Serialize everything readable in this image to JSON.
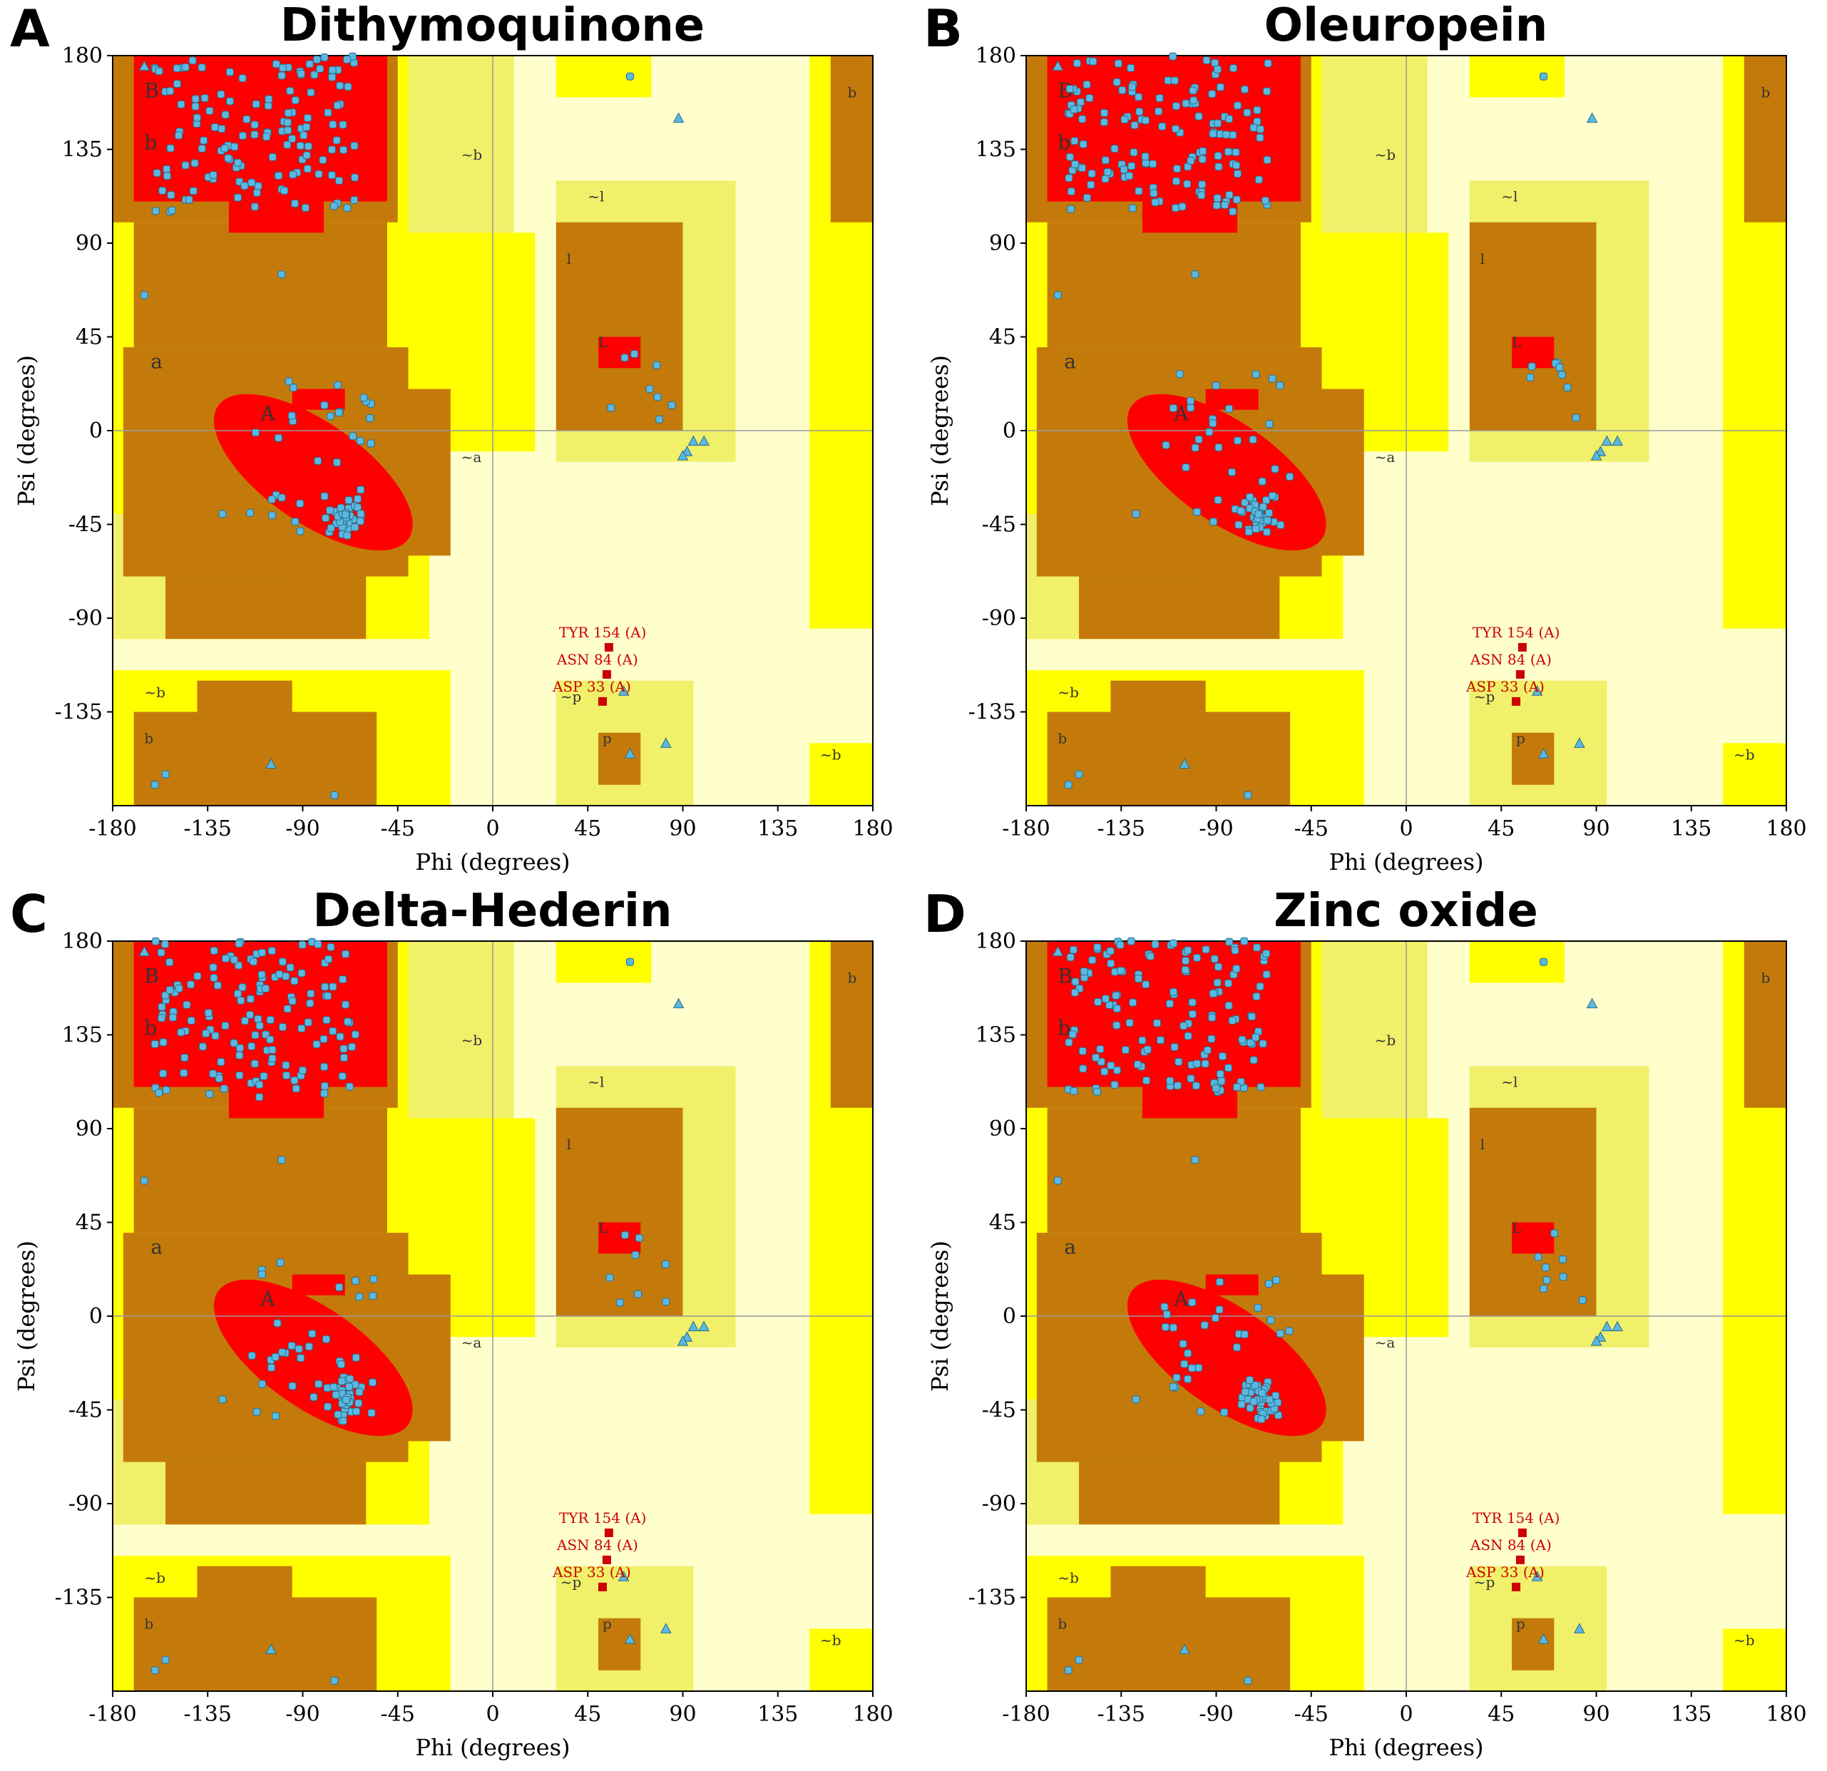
{
  "figure": {
    "colors": {
      "core": "#ff0000",
      "allowed": "#c47a0a",
      "generous": "#ffff00",
      "generous_light": "#f0f06a",
      "outside": "#ffffcc",
      "point": "#5bb8e0",
      "flagged": "#cc0000"
    }
  },
  "labels": {
    "region_labels": [
      "B",
      "b",
      "a",
      "A",
      "~b",
      "~l",
      "l",
      "L",
      "~a",
      "~p",
      "p",
      "b",
      "~b",
      "~b",
      "b"
    ],
    "outliers": [
      "TYR 154 (A)",
      "ASN 84 (A)",
      "ASP 33 (A)"
    ]
  },
  "panels": [
    {
      "letter": "A",
      "title": "Dithymoquinone"
    },
    {
      "letter": "B",
      "title": "Oleuropein"
    },
    {
      "letter": "C",
      "title": "Delta-Hederin"
    },
    {
      "letter": "D",
      "title": "Zinc oxide"
    }
  ],
  "chart_data": [
    {
      "type": "scatter",
      "title": "Dithymoquinone",
      "xlabel": "Phi (degrees)",
      "ylabel": "Psi (degrees)",
      "xlim": [
        -180,
        180
      ],
      "ylim": [
        -180,
        180
      ],
      "xticks": [
        "-180",
        "-135",
        "-90",
        "-45",
        "0",
        "45",
        "90",
        "135",
        "180"
      ],
      "yticks": [
        "180",
        "135",
        "90",
        "45",
        "0",
        "-45",
        "-90",
        "-135"
      ],
      "outliers": [
        {
          "name": "TYR 154 (A)",
          "phi": 55,
          "psi": -104
        },
        {
          "name": "ASN 84 (A)",
          "phi": 54,
          "psi": -117
        },
        {
          "name": "ASP 33 (A)",
          "phi": 52,
          "psi": -130
        }
      ]
    },
    {
      "type": "scatter",
      "title": "Oleuropein",
      "xlabel": "Phi (degrees)",
      "ylabel": "Psi (degrees)",
      "xlim": [
        -180,
        180
      ],
      "ylim": [
        -180,
        180
      ],
      "xticks": [
        "-180",
        "-135",
        "-90",
        "-45",
        "0",
        "45",
        "90",
        "135",
        "180"
      ],
      "yticks": [
        "180",
        "135",
        "90",
        "45",
        "0",
        "-45",
        "-90",
        "-135"
      ],
      "outliers": [
        {
          "name": "TYR 154 (A)",
          "phi": 55,
          "psi": -104
        },
        {
          "name": "ASN 84 (A)",
          "phi": 54,
          "psi": -117
        },
        {
          "name": "ASP 33 (A)",
          "phi": 52,
          "psi": -130
        }
      ]
    },
    {
      "type": "scatter",
      "title": "Delta-Hederin",
      "xlabel": "Phi (degrees)",
      "ylabel": "Psi (degrees)",
      "xlim": [
        -180,
        180
      ],
      "ylim": [
        -180,
        180
      ],
      "xticks": [
        "-180",
        "-135",
        "-90",
        "-45",
        "0",
        "45",
        "90",
        "135",
        "180"
      ],
      "yticks": [
        "180",
        "135",
        "90",
        "45",
        "0",
        "-45",
        "-90",
        "-135"
      ],
      "outliers": [
        {
          "name": "TYR 154 (A)",
          "phi": 55,
          "psi": -104
        },
        {
          "name": "ASN 84 (A)",
          "phi": 54,
          "psi": -117
        },
        {
          "name": "ASP 33 (A)",
          "phi": 52,
          "psi": -130
        }
      ]
    },
    {
      "type": "scatter",
      "title": "Zinc oxide",
      "xlabel": "Phi (degrees)",
      "ylabel": "Psi (degrees)",
      "xlim": [
        -180,
        180
      ],
      "ylim": [
        -180,
        180
      ],
      "xticks": [
        "-180",
        "-135",
        "-90",
        "-45",
        "0",
        "45",
        "90",
        "135",
        "180"
      ],
      "yticks": [
        "180",
        "135",
        "90",
        "45",
        "0",
        "-45",
        "-90",
        "-135"
      ],
      "outliers": [
        {
          "name": "TYR 154 (A)",
          "phi": 55,
          "psi": -104
        },
        {
          "name": "ASN 84 (A)",
          "phi": 54,
          "psi": -117
        },
        {
          "name": "ASP 33 (A)",
          "phi": 52,
          "psi": -130
        }
      ]
    }
  ]
}
